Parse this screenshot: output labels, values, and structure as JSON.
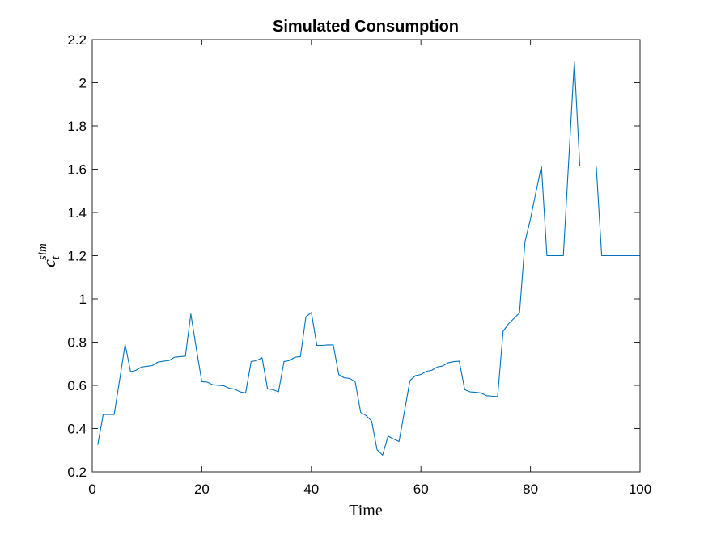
{
  "chart_data": {
    "type": "line",
    "title": "Simulated Consumption",
    "xlabel": "Time",
    "ylabel": {
      "base": "c",
      "subscript": "t",
      "superscript": "sim"
    },
    "xlim": [
      0,
      100
    ],
    "ylim": [
      0.2,
      2.2
    ],
    "xticks": [
      0,
      20,
      40,
      60,
      80,
      100
    ],
    "yticks": [
      0.2,
      0.4,
      0.6,
      0.8,
      1,
      1.2,
      1.4,
      1.6,
      1.8,
      2,
      2.2
    ],
    "grid": false,
    "line_color": "#0072BD",
    "series": [
      {
        "x": [
          1,
          2,
          3,
          4,
          5,
          6,
          7,
          8,
          9,
          10,
          11,
          12,
          13,
          14,
          15,
          16,
          17,
          18,
          19,
          20,
          21,
          22,
          23,
          24,
          25,
          26,
          27,
          28,
          29,
          30,
          31,
          32,
          33,
          34,
          35,
          36,
          37,
          38,
          39,
          40,
          41,
          42,
          43,
          44,
          45,
          46,
          47,
          48,
          49,
          50,
          51,
          52,
          53,
          54,
          55,
          56,
          57,
          58,
          59,
          60,
          61,
          62,
          63,
          64,
          65,
          66,
          67,
          68,
          69,
          70,
          71,
          72,
          73,
          74,
          75,
          76,
          77,
          78,
          79,
          80,
          81,
          82,
          83,
          84,
          85,
          86,
          87,
          88,
          89,
          90,
          91,
          92,
          93,
          94,
          95,
          96,
          97,
          98,
          99,
          100
        ],
        "values": [
          0.325,
          0.465,
          0.465,
          0.465,
          0.625,
          0.79,
          0.663,
          0.67,
          0.685,
          0.688,
          0.692,
          0.708,
          0.712,
          0.715,
          0.73,
          0.733,
          0.735,
          0.93,
          0.77,
          0.617,
          0.615,
          0.603,
          0.6,
          0.598,
          0.587,
          0.582,
          0.57,
          0.565,
          0.71,
          0.715,
          0.728,
          0.584,
          0.58,
          0.57,
          0.71,
          0.715,
          0.73,
          0.733,
          0.917,
          0.937,
          0.785,
          0.785,
          0.787,
          0.787,
          0.65,
          0.635,
          0.632,
          0.617,
          0.475,
          0.46,
          0.435,
          0.302,
          0.277,
          0.365,
          0.352,
          0.34,
          0.48,
          0.622,
          0.645,
          0.65,
          0.665,
          0.67,
          0.685,
          0.69,
          0.705,
          0.71,
          0.712,
          0.58,
          0.57,
          0.568,
          0.565,
          0.552,
          0.55,
          0.548,
          0.85,
          0.885,
          0.91,
          0.935,
          1.265,
          1.37,
          1.495,
          1.615,
          1.2,
          1.2,
          1.2,
          1.2,
          1.65,
          2.1,
          1.615,
          1.615,
          1.615,
          1.615,
          1.2,
          1.2,
          1.2,
          1.2,
          1.2,
          1.2,
          1.2,
          1.2
        ]
      }
    ]
  }
}
